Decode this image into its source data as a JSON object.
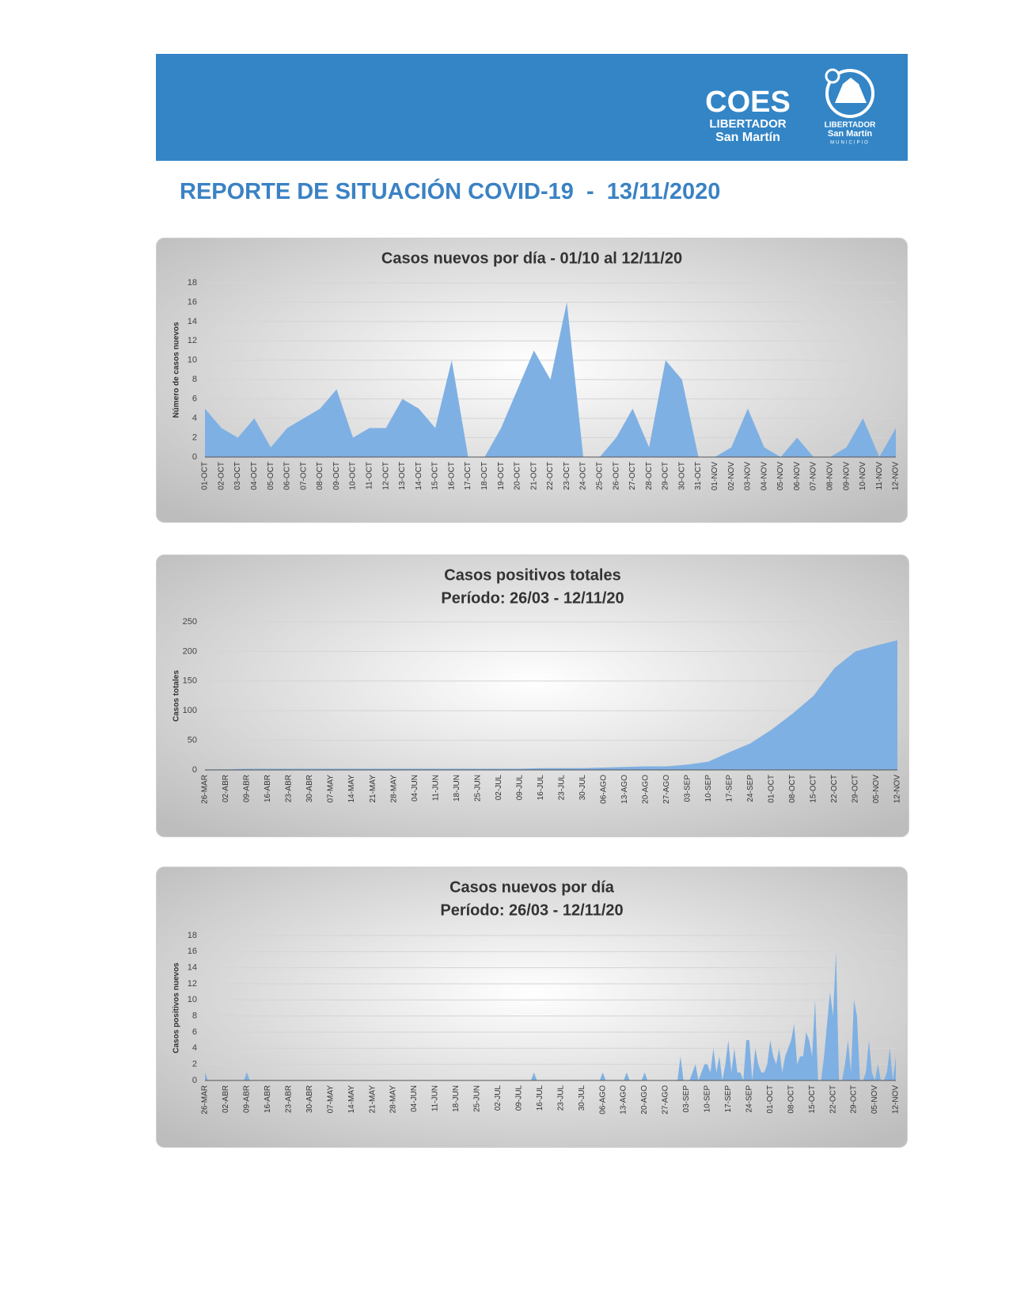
{
  "header": {
    "logo_title": "COES",
    "logo_line1": "LIBERTADOR",
    "logo_line2": "San Martín",
    "muni_line1": "LIBERTADOR",
    "muni_line2": "San Martín",
    "muni_line3": "MUNICIPIO"
  },
  "title": "REPORTE DE SITUACIÓN COVID-19  -  13/11/2020",
  "chart_data": [
    {
      "type": "area",
      "title": "Casos nuevos por día - 01/10 al  12/11/20",
      "y_label": "Número de casos nuevos",
      "color": "#7fb0e3",
      "grid": true,
      "categories": [
        "01-OCT",
        "02-OCT",
        "03-OCT",
        "04-OCT",
        "05-OCT",
        "06-OCT",
        "07-OCT",
        "08-OCT",
        "09-OCT",
        "10-OCT",
        "11-OCT",
        "12-OCT",
        "13-OCT",
        "14-OCT",
        "15-OCT",
        "16-OCT",
        "17-OCT",
        "18-OCT",
        "19-OCT",
        "20-OCT",
        "21-OCT",
        "22-OCT",
        "23-OCT",
        "24-OCT",
        "25-OCT",
        "26-OCT",
        "27-OCT",
        "28-OCT",
        "29-OCT",
        "30-OCT",
        "31-OCT",
        "01-NOV",
        "02-NOV",
        "03-NOV",
        "04-NOV",
        "05-NOV",
        "06-NOV",
        "07-NOV",
        "08-NOV",
        "09-NOV",
        "10-NOV",
        "11-NOV",
        "12-NOV"
      ],
      "values": [
        5,
        3,
        2,
        4,
        1,
        3,
        4,
        5,
        7,
        2,
        3,
        3,
        6,
        5,
        3,
        10,
        0,
        0,
        3,
        7,
        11,
        8,
        16,
        0,
        0,
        2,
        5,
        1,
        10,
        8,
        0,
        0,
        1,
        5,
        1,
        0,
        2,
        0,
        0,
        1,
        4,
        0,
        3
      ],
      "ylim": [
        0,
        18
      ],
      "yticks": [
        0,
        2,
        4,
        6,
        8,
        10,
        12,
        14,
        16,
        18
      ]
    },
    {
      "type": "area",
      "title": "Casos positivos totales",
      "subtitle": "Período: 26/03 - 12/11/20",
      "y_label": "Casos totales",
      "color": "#7fb0e3",
      "grid": true,
      "categories": [
        "26-MAR",
        "02-ABR",
        "09-ABR",
        "16-ABR",
        "23-ABR",
        "30-ABR",
        "07-MAY",
        "14-MAY",
        "21-MAY",
        "28-MAY",
        "04-JUN",
        "11-JUN",
        "18-JUN",
        "25-JUN",
        "02-JUL",
        "09-JUL",
        "16-JUL",
        "23-JUL",
        "30-JUL",
        "06-AGO",
        "13-AGO",
        "20-AGO",
        "27-AGO",
        "03-SEP",
        "10-SEP",
        "17-SEP",
        "24-SEP",
        "01-OCT",
        "08-OCT",
        "15-OCT",
        "22-OCT",
        "29-OCT",
        "05-NOV",
        "12-NOV"
      ],
      "values": [
        1,
        1,
        2,
        2,
        2,
        2,
        2,
        2,
        2,
        2,
        2,
        2,
        2,
        2,
        2,
        2,
        3,
        3,
        3,
        4,
        5,
        6,
        6,
        9,
        14,
        30,
        45,
        68,
        95,
        125,
        172,
        200,
        210,
        219
      ],
      "ylim": [
        0,
        250
      ],
      "yticks": [
        0,
        50,
        100,
        150,
        200,
        250
      ]
    },
    {
      "type": "area",
      "title": "Casos nuevos por día",
      "subtitle": "Período: 26/03 - 12/11/20",
      "y_label": "Casos positivos nuevos",
      "color": "#7fb0e3",
      "grid": true,
      "categories": [
        "26-MAR",
        null,
        null,
        null,
        null,
        null,
        null,
        "02-ABR",
        null,
        null,
        null,
        null,
        null,
        null,
        "09-ABR",
        null,
        null,
        null,
        null,
        null,
        null,
        "16-ABR",
        null,
        null,
        null,
        null,
        null,
        null,
        "23-ABR",
        null,
        null,
        null,
        null,
        null,
        null,
        "30-ABR",
        null,
        null,
        null,
        null,
        null,
        null,
        "07-MAY",
        null,
        null,
        null,
        null,
        null,
        null,
        "14-MAY",
        null,
        null,
        null,
        null,
        null,
        null,
        "21-MAY",
        null,
        null,
        null,
        null,
        null,
        null,
        "28-MAY",
        null,
        null,
        null,
        null,
        null,
        null,
        "04-JUN",
        null,
        null,
        null,
        null,
        null,
        null,
        "11-JUN",
        null,
        null,
        null,
        null,
        null,
        null,
        "18-JUN",
        null,
        null,
        null,
        null,
        null,
        null,
        "25-JUN",
        null,
        null,
        null,
        null,
        null,
        null,
        "02-JUL",
        null,
        null,
        null,
        null,
        null,
        null,
        "09-JUL",
        null,
        null,
        null,
        null,
        null,
        null,
        "16-JUL",
        null,
        null,
        null,
        null,
        null,
        null,
        "23-JUL",
        null,
        null,
        null,
        null,
        null,
        null,
        "30-JUL",
        null,
        null,
        null,
        null,
        null,
        null,
        "06-AGO",
        null,
        null,
        null,
        null,
        null,
        null,
        "13-AGO",
        null,
        null,
        null,
        null,
        null,
        null,
        "20-AGO",
        null,
        null,
        null,
        null,
        null,
        null,
        "27-AGO",
        null,
        null,
        null,
        null,
        null,
        null,
        "03-SEP",
        null,
        null,
        null,
        null,
        null,
        null,
        "10-SEP",
        null,
        null,
        null,
        null,
        null,
        null,
        "17-SEP",
        null,
        null,
        null,
        null,
        null,
        null,
        "24-SEP",
        null,
        null,
        null,
        null,
        null,
        null,
        "01-OCT",
        null,
        null,
        null,
        null,
        null,
        null,
        "08-OCT",
        null,
        null,
        null,
        null,
        null,
        null,
        "15-OCT",
        null,
        null,
        null,
        null,
        null,
        null,
        "22-OCT",
        null,
        null,
        null,
        null,
        null,
        null,
        "29-OCT",
        null,
        null,
        null,
        null,
        null,
        null,
        "05-NOV",
        null,
        null,
        null,
        null,
        null,
        null,
        "12-NOV"
      ],
      "values": [
        1,
        0,
        0,
        0,
        0,
        0,
        0,
        0,
        0,
        0,
        0,
        0,
        0,
        0,
        1,
        0,
        0,
        0,
        0,
        0,
        0,
        0,
        0,
        0,
        0,
        0,
        0,
        0,
        0,
        0,
        0,
        0,
        0,
        0,
        0,
        0,
        0,
        0,
        0,
        0,
        0,
        0,
        0,
        0,
        0,
        0,
        0,
        0,
        0,
        0,
        0,
        0,
        0,
        0,
        0,
        0,
        0,
        0,
        0,
        0,
        0,
        0,
        0,
        0,
        0,
        0,
        0,
        0,
        0,
        0,
        0,
        0,
        0,
        0,
        0,
        0,
        0,
        0,
        0,
        0,
        0,
        0,
        0,
        0,
        0,
        0,
        0,
        0,
        0,
        0,
        0,
        0,
        0,
        0,
        0,
        0,
        0,
        0,
        0,
        0,
        0,
        0,
        0,
        0,
        0,
        0,
        0,
        0,
        0,
        0,
        1,
        0,
        0,
        0,
        0,
        0,
        0,
        0,
        0,
        0,
        0,
        0,
        0,
        0,
        0,
        0,
        0,
        0,
        0,
        0,
        0,
        0,
        0,
        1,
        0,
        0,
        0,
        0,
        0,
        0,
        0,
        1,
        0,
        0,
        0,
        0,
        0,
        1,
        0,
        0,
        0,
        0,
        0,
        0,
        0,
        0,
        0,
        0,
        0,
        3,
        0,
        0,
        0,
        1,
        2,
        0,
        1,
        2,
        2,
        1,
        4,
        1,
        3,
        0,
        2,
        5,
        1,
        4,
        1,
        1,
        0,
        5,
        5,
        0,
        4,
        2,
        1,
        1,
        2,
        5,
        3,
        2,
        4,
        1,
        3,
        4,
        5,
        7,
        2,
        3,
        3,
        6,
        5,
        3,
        10,
        0,
        0,
        3,
        7,
        11,
        8,
        16,
        0,
        0,
        2,
        5,
        1,
        10,
        8,
        0,
        0,
        1,
        5,
        1,
        0,
        2,
        0,
        0,
        1,
        4,
        0,
        3
      ],
      "ylim": [
        0,
        18
      ],
      "yticks": [
        0,
        2,
        4,
        6,
        8,
        10,
        12,
        14,
        16,
        18
      ]
    }
  ]
}
